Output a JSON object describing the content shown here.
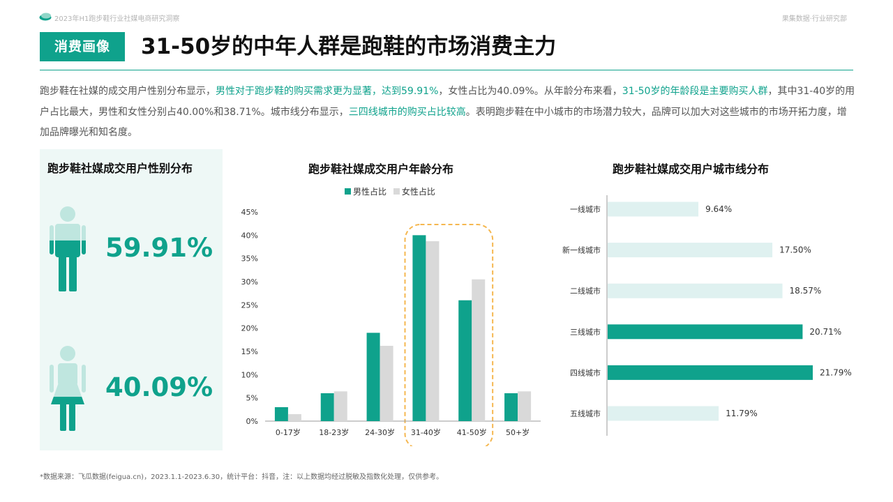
{
  "header": {
    "report_name": "2023年H1跑步鞋行业社媒电商研究洞察",
    "department": "果集数据·行业研究部"
  },
  "section_tag": "消费画像",
  "title": "31-50岁的中年人群是跑鞋的市场消费主力",
  "summary": [
    {
      "text": "跑步鞋在社媒的成交用户性别分布显示，",
      "highlight": false
    },
    {
      "text": "男性对于跑步鞋的购买需求更为显著，达到59.91%",
      "highlight": true
    },
    {
      "text": "，女性占比为40.09%。从年龄分布来看，",
      "highlight": false
    },
    {
      "text": "31-50岁的年龄段是主要购买人群",
      "highlight": true
    },
    {
      "text": "，其中31-40岁的用户占比最大，男性和女性分别占40.00%和38.71%。城市线分布显示，",
      "highlight": false
    },
    {
      "text": "三四线城市的购买占比较高",
      "highlight": true
    },
    {
      "text": "。表明跑步鞋在中小城市的市场潜力较大，品牌可以加大对这些城市的市场开拓力度，增加品牌曝光和知名度。",
      "highlight": false
    }
  ],
  "gender": {
    "title": "跑步鞋社媒成交用户性别分布",
    "male_pct": "59.91%",
    "female_pct": "40.09%",
    "male_fill": 0.5991,
    "female_fill": 0.4009
  },
  "colors": {
    "accent": "#0fa28c",
    "secondary": "#d9d9d9",
    "light_bar": "#dff1f0",
    "icon_light": "#bfe6df",
    "highlight_box": "#f5b74f"
  },
  "chart_data": [
    {
      "type": "bar",
      "title": "跑步鞋社媒成交用户年龄分布",
      "categories": [
        "0-17岁",
        "18-23岁",
        "24-30岁",
        "31-40岁",
        "41-50岁",
        "50+岁"
      ],
      "series": [
        {
          "name": "男性占比",
          "values": [
            3,
            6,
            19,
            40,
            26,
            6
          ]
        },
        {
          "name": "女性占比",
          "values": [
            1.5,
            6.4,
            16.2,
            38.71,
            30.5,
            6.4
          ]
        }
      ],
      "yticks": [
        "0%",
        "5%",
        "10%",
        "15%",
        "20%",
        "25%",
        "30%",
        "35%",
        "40%",
        "45%"
      ],
      "ylim": [
        0,
        45
      ],
      "highlight_categories": [
        "31-40岁",
        "41-50岁"
      ],
      "legend_position": "top"
    },
    {
      "type": "bar",
      "orientation": "horizontal",
      "title": "跑步鞋社媒成交用户城市线分布",
      "categories": [
        "一线城市",
        "新一线城市",
        "二线城市",
        "三线城市",
        "四线城市",
        "五线城市"
      ],
      "values": [
        9.64,
        17.5,
        18.57,
        20.71,
        21.79,
        11.79
      ],
      "labels": [
        "9.64%",
        "17.50%",
        "18.57%",
        "20.71%",
        "21.79%",
        "11.79%"
      ],
      "highlight_categories": [
        "三线城市",
        "四线城市"
      ]
    }
  ],
  "footnote": "*数据来源：飞瓜数据(feigua.cn)，2023.1.1-2023.6.30，统计平台：抖音，注：以上数据均经过脱敏及指数化处理，仅供参考。"
}
